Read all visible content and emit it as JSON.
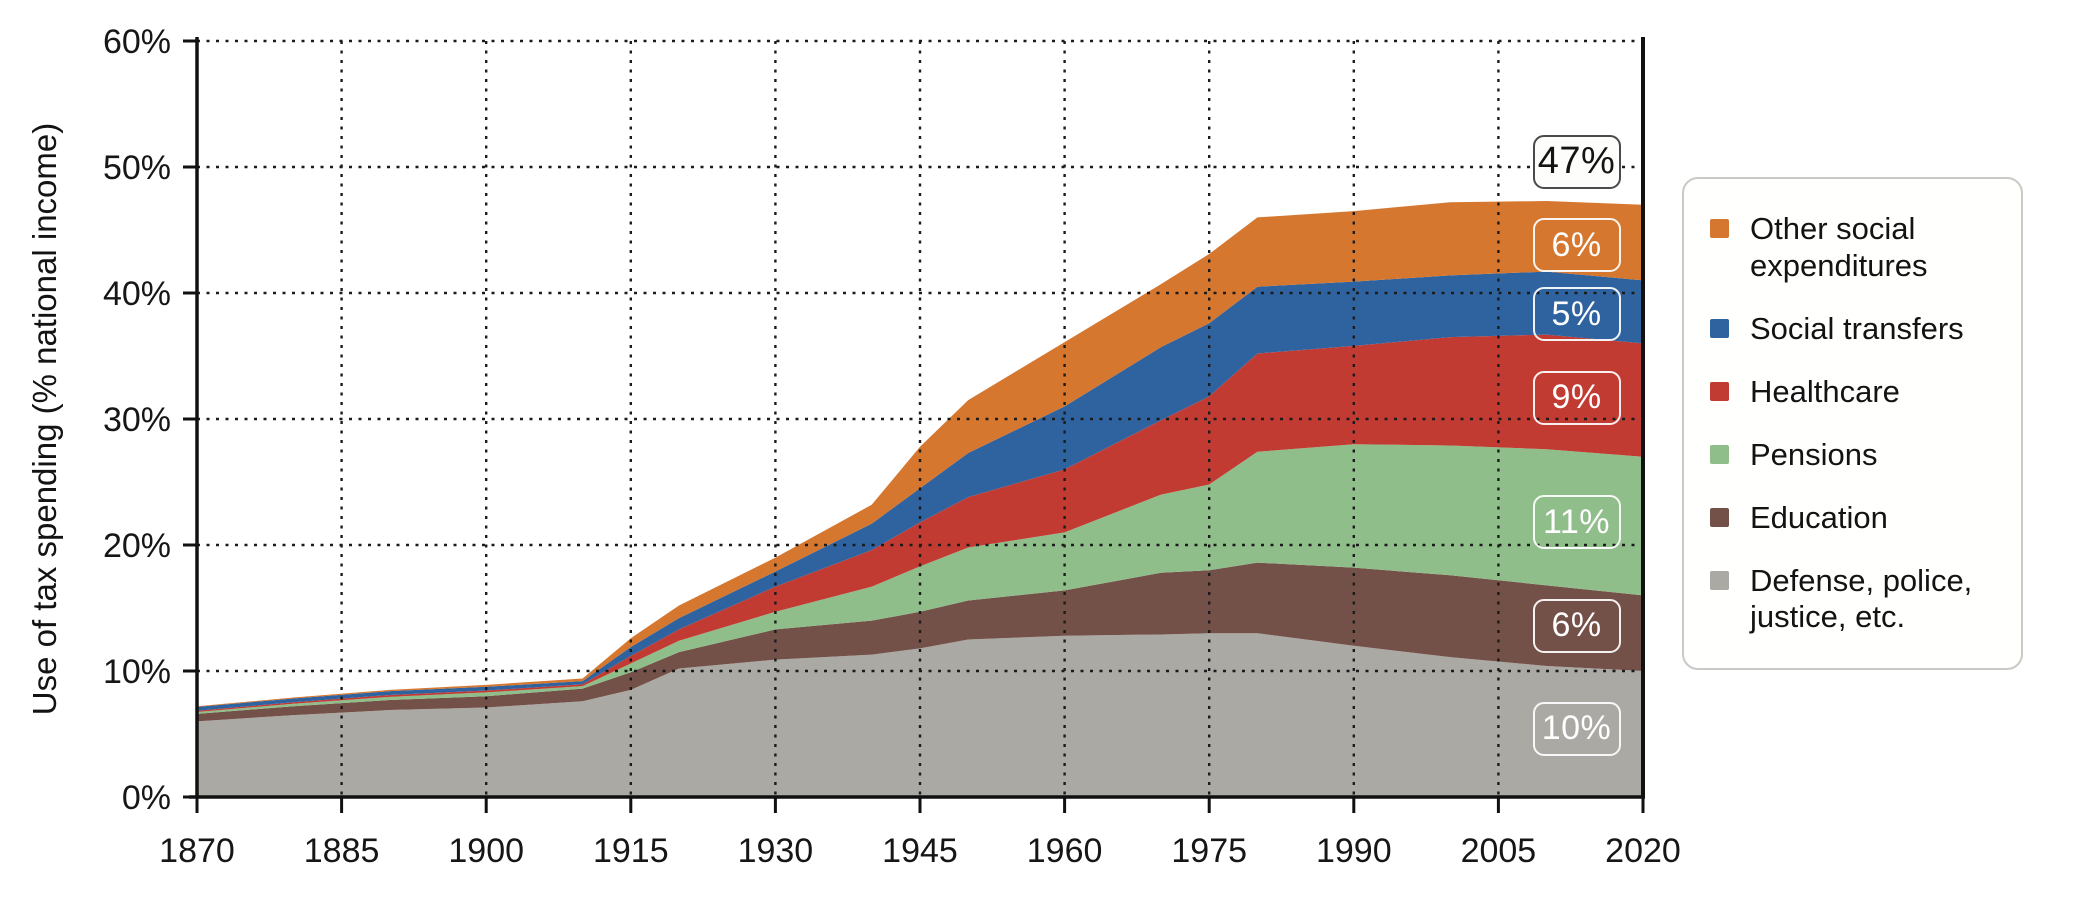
{
  "figure": {
    "background_color": "#FFFFFF",
    "axis_color": "#111111",
    "grid_color": "#1B1B1B",
    "tick_label_color": "#161616"
  },
  "chart_data": {
    "type": "area",
    "stacked": true,
    "title": "",
    "xlabel": "",
    "ylabel": "Use of tax spending (% national income)",
    "xlim": [
      1870,
      2020
    ],
    "ylim": [
      0,
      60
    ],
    "x_ticks": [
      1870,
      1885,
      1900,
      1915,
      1930,
      1945,
      1960,
      1975,
      1990,
      2005,
      2020
    ],
    "y_ticks": [
      {
        "value": 0,
        "label": "0%"
      },
      {
        "value": 10,
        "label": "10%"
      },
      {
        "value": 20,
        "label": "20%"
      },
      {
        "value": 30,
        "label": "30%"
      },
      {
        "value": 40,
        "label": "40%"
      },
      {
        "value": 50,
        "label": "50%"
      },
      {
        "value": 60,
        "label": "60%"
      }
    ],
    "grid": "dotted, both axes, drawn over areas",
    "legend_position": "right, outside plot",
    "x": [
      1870,
      1880,
      1890,
      1900,
      1910,
      1915,
      1920,
      1930,
      1940,
      1945,
      1950,
      1960,
      1970,
      1975,
      1980,
      1990,
      2000,
      2010,
      2020
    ],
    "series": [
      {
        "name": "Defense, police, justice, etc.",
        "color": "#ABA9A4",
        "values": [
          6.0,
          6.5,
          6.9,
          7.1,
          7.6,
          8.5,
          10.2,
          10.9,
          11.3,
          11.8,
          12.5,
          12.8,
          12.9,
          13.0,
          13.0,
          12.0,
          11.1,
          10.4,
          10.0
        ]
      },
      {
        "name": "Education",
        "color": "#745148",
        "values": [
          0.6,
          0.7,
          0.8,
          0.9,
          1.0,
          1.4,
          1.3,
          2.4,
          2.7,
          2.9,
          3.1,
          3.6,
          4.9,
          5.0,
          5.6,
          6.2,
          6.5,
          6.4,
          6.0
        ]
      },
      {
        "name": "Pensions",
        "color": "#90BE8B",
        "values": [
          0.15,
          0.2,
          0.25,
          0.3,
          0.2,
          0.7,
          0.9,
          1.4,
          2.7,
          3.6,
          4.2,
          4.6,
          6.2,
          6.8,
          8.8,
          9.8,
          10.3,
          10.8,
          11.0
        ]
      },
      {
        "name": "Healthcare",
        "color": "#C23B33",
        "values": [
          0.1,
          0.12,
          0.15,
          0.15,
          0.15,
          0.6,
          0.9,
          2.0,
          2.9,
          3.5,
          4.0,
          5.0,
          5.9,
          7.0,
          7.8,
          7.8,
          8.6,
          9.1,
          9.0
        ]
      },
      {
        "name": "Social transfers",
        "color": "#2F63A0",
        "values": [
          0.3,
          0.3,
          0.3,
          0.3,
          0.25,
          0.7,
          0.9,
          1.2,
          2.1,
          2.7,
          3.5,
          5.0,
          5.8,
          5.8,
          5.3,
          5.1,
          4.9,
          5.0,
          5.0
        ]
      },
      {
        "name": "Other social expenditures",
        "color": "#D6772F",
        "values": [
          0.05,
          0.08,
          0.1,
          0.15,
          0.2,
          0.7,
          1.0,
          1.1,
          1.5,
          3.3,
          4.2,
          5.1,
          5.0,
          5.5,
          5.5,
          5.6,
          5.8,
          5.6,
          6.0
        ]
      }
    ],
    "legend": [
      {
        "label": "Other social expenditures",
        "color": "#D6772F"
      },
      {
        "label": "Social transfers",
        "color": "#2F63A0"
      },
      {
        "label": "Healthcare",
        "color": "#C23B33"
      },
      {
        "label": "Pensions",
        "color": "#90BE8B"
      },
      {
        "label": "Education",
        "color": "#745148"
      },
      {
        "label": "Defense, police, justice, etc.",
        "color": "#ABA9A4"
      }
    ],
    "annotations": [
      {
        "text": "47%",
        "meaning": "total tax spending in 2020",
        "x_year": 2013,
        "y_pct": 50.4,
        "style": "total"
      },
      {
        "text": "6%",
        "meaning": "Other social expenditures",
        "x_year": 2013,
        "y_pct": 43.8,
        "style": "band"
      },
      {
        "text": "5%",
        "meaning": "Social transfers",
        "x_year": 2013,
        "y_pct": 38.3,
        "style": "band"
      },
      {
        "text": "9%",
        "meaning": "Healthcare",
        "x_year": 2013,
        "y_pct": 31.7,
        "style": "band"
      },
      {
        "text": "11%",
        "meaning": "Pensions",
        "x_year": 2013,
        "y_pct": 21.8,
        "style": "band"
      },
      {
        "text": "6%",
        "meaning": "Education",
        "x_year": 2013,
        "y_pct": 13.6,
        "style": "band"
      },
      {
        "text": "10%",
        "meaning": "Defense, police, justice, etc.",
        "x_year": 2013,
        "y_pct": 5.4,
        "style": "band"
      }
    ]
  }
}
